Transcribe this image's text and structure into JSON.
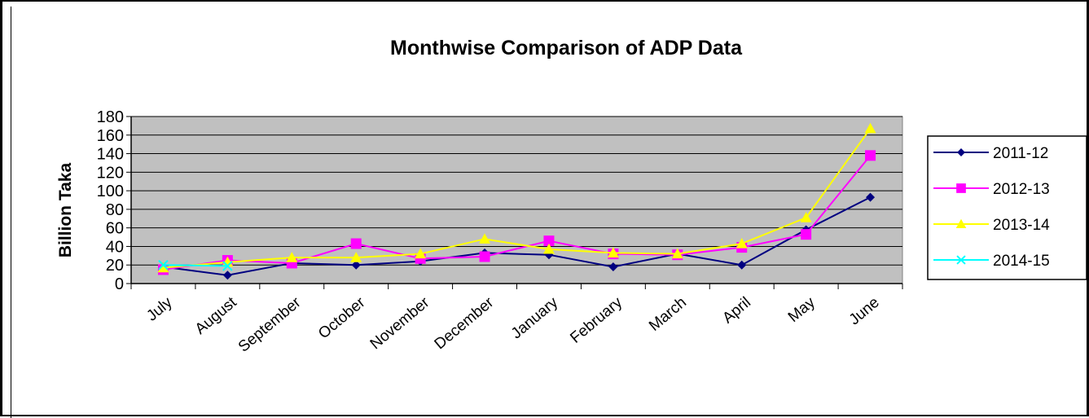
{
  "chart_data": {
    "type": "line",
    "title": "Monthwise Comparison of ADP Data",
    "xlabel": "",
    "ylabel": "Billion Taka",
    "categories": [
      "July",
      "August",
      "September",
      "October",
      "November",
      "December",
      "January",
      "February",
      "March",
      "April",
      "May",
      "June"
    ],
    "ylim": [
      0,
      180
    ],
    "yticks": [
      0,
      20,
      40,
      60,
      80,
      100,
      120,
      140,
      160,
      180
    ],
    "grid": true,
    "legend": "right",
    "plot_background": "#c0c0c0",
    "series": [
      {
        "name": "2011-12",
        "color": "#000080",
        "marker": "diamond",
        "values": [
          18,
          9,
          22,
          20,
          24,
          33,
          31,
          18,
          32,
          20,
          58,
          93
        ]
      },
      {
        "name": "2012-13",
        "color": "#ff00ff",
        "marker": "square",
        "values": [
          15,
          25,
          22,
          43,
          27,
          29,
          46,
          32,
          31,
          39,
          53,
          138
        ]
      },
      {
        "name": "2013-14",
        "color": "#ffff00",
        "marker": "triangle",
        "values": [
          17,
          23,
          28,
          28,
          32,
          48,
          37,
          33,
          32,
          43,
          71,
          167
        ]
      },
      {
        "name": "2014-15",
        "color": "#00ffff",
        "marker": "x",
        "values": [
          20,
          19,
          null,
          null,
          null,
          null,
          null,
          null,
          null,
          null,
          null,
          null
        ]
      }
    ]
  }
}
